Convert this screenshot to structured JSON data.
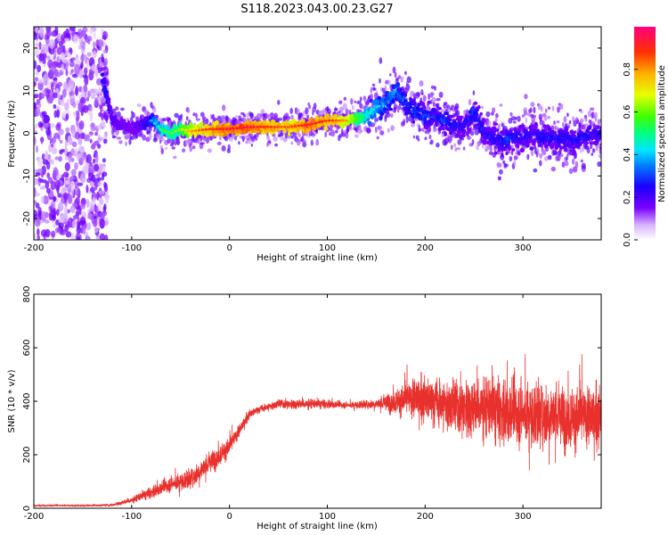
{
  "title": "S118.2023.043.00.23.G27",
  "colors": {
    "snr_line": "#e8302c",
    "axis": "#000000",
    "background": "#ffffff"
  },
  "chart_data": [
    {
      "type": "heatmap",
      "xlabel": "Height of straight line (km)",
      "ylabel": "Frequency (Hz)",
      "xlim": [
        -200,
        380
      ],
      "ylim": [
        -25,
        25
      ],
      "xticks": [
        -200,
        -100,
        0,
        100,
        200,
        300
      ],
      "yticks": [
        -20,
        -10,
        0,
        10,
        20
      ],
      "colorbar": {
        "label": "Normalized spectral amplitude",
        "range": [
          0,
          1
        ],
        "ticks": [
          0.0,
          0.2,
          0.4,
          0.6,
          0.8
        ],
        "colormap": "rainbow"
      },
      "ridge": {
        "x": [
          -130,
          -120,
          -100,
          -90,
          -80,
          -70,
          -60,
          -50,
          -40,
          -20,
          0,
          20,
          40,
          60,
          80,
          100,
          120,
          140,
          150,
          160,
          170,
          180,
          190,
          200,
          210,
          220,
          230,
          240,
          250,
          260,
          270,
          280,
          290,
          300,
          310,
          320,
          330,
          340,
          350,
          360,
          370,
          380
        ],
        "freq": [
          13,
          3,
          1,
          2,
          3,
          1,
          0,
          1,
          0.5,
          1,
          1,
          1.5,
          1.5,
          1.5,
          2,
          3,
          3,
          4,
          6,
          7,
          10,
          7,
          5,
          4,
          4,
          3,
          2,
          2,
          5,
          0,
          -1,
          -2,
          -1,
          -1,
          0,
          -1,
          -1,
          -1,
          -2,
          -1,
          0,
          0
        ],
        "amplitude": [
          0.3,
          0.25,
          0.2,
          0.25,
          0.35,
          0.5,
          0.55,
          0.6,
          0.75,
          0.85,
          0.9,
          0.9,
          0.85,
          0.8,
          0.9,
          0.85,
          0.75,
          0.5,
          0.45,
          0.4,
          0.4,
          0.35,
          0.35,
          0.35,
          0.3,
          0.35,
          0.3,
          0.3,
          0.35,
          0.3,
          0.3,
          0.35,
          0.3,
          0.3,
          0.3,
          0.3,
          0.3,
          0.3,
          0.3,
          0.3,
          0.3,
          0.3
        ]
      }
    },
    {
      "type": "line",
      "xlabel": "Height of straight line (km)",
      "ylabel": "SNR (10 * v/v)",
      "xlim": [
        -200,
        380
      ],
      "ylim": [
        0,
        800
      ],
      "xticks": [
        -200,
        -100,
        0,
        100,
        200,
        300
      ],
      "yticks": [
        0,
        200,
        400,
        600,
        800
      ],
      "envelope": {
        "x": [
          -200,
          -150,
          -120,
          -100,
          -80,
          -60,
          -40,
          -20,
          0,
          10,
          20,
          30,
          50,
          80,
          100,
          120,
          150,
          170,
          190,
          210,
          230,
          250,
          270,
          290,
          310,
          330,
          350,
          370,
          380
        ],
        "mean": [
          10,
          10,
          12,
          30,
          60,
          90,
          110,
          170,
          230,
          290,
          350,
          370,
          390,
          390,
          390,
          385,
          390,
          400,
          410,
          400,
          380,
          380,
          370,
          360,
          350,
          350,
          340,
          340,
          340
        ],
        "spread": [
          5,
          5,
          8,
          20,
          40,
          50,
          60,
          70,
          60,
          40,
          30,
          25,
          30,
          35,
          30,
          20,
          30,
          80,
          130,
          160,
          180,
          200,
          220,
          220,
          200,
          200,
          200,
          190,
          190
        ]
      }
    }
  ]
}
